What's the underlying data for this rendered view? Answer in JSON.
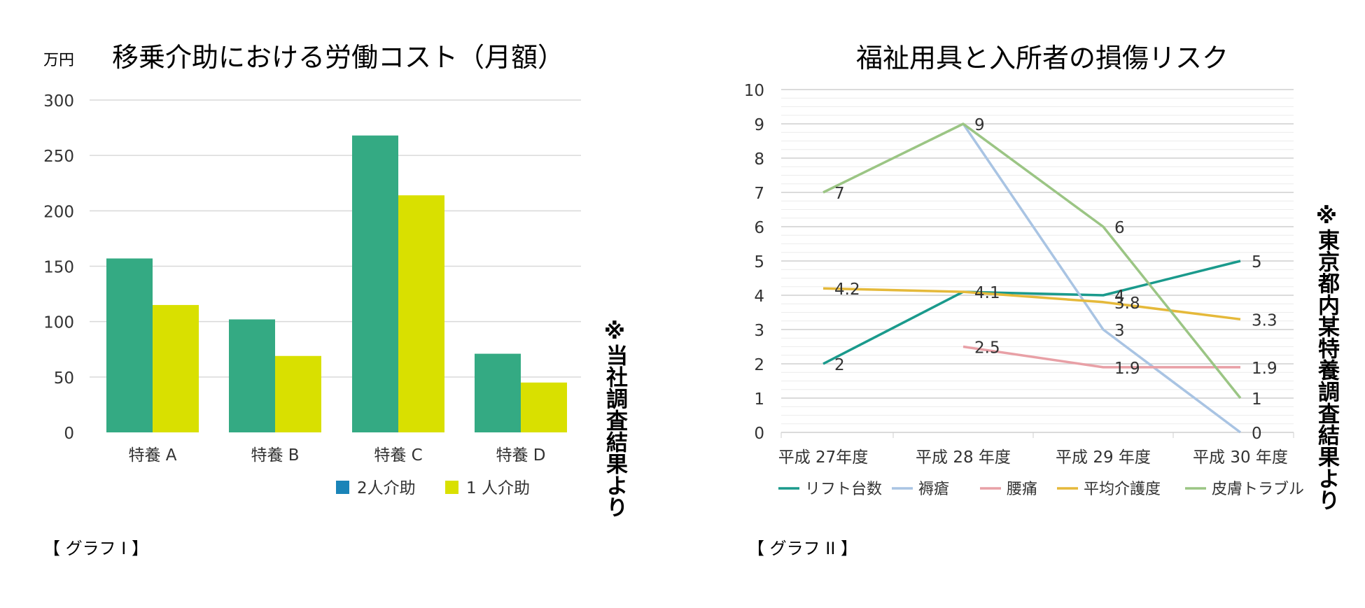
{
  "charts": {
    "c1": {
      "title": "移乗介助における労働コスト（月額）",
      "unit": "万円",
      "note": "※当社調査結果より",
      "caption": "【 グラフ I 】"
    },
    "c2": {
      "title": "福祉用具と入所者の損傷リスク",
      "note": "※東京都内某特養調査結果より",
      "caption": "【 グラフ II 】"
    }
  },
  "chart_data": [
    {
      "type": "bar",
      "title": "移乗介助における労働コスト（月額）",
      "ylabel": "万円",
      "categories": [
        "特養 A",
        "特養 B",
        "特養 C",
        "特養 D"
      ],
      "ylim": [
        0,
        300
      ],
      "yticks": [
        0,
        50,
        100,
        150,
        200,
        250,
        300
      ],
      "grid": true,
      "legend": "bottom",
      "series": [
        {
          "name": "2人介助",
          "color": "#34aa83",
          "legend_color": "#1a84b8",
          "values": [
            157,
            102,
            268,
            71
          ]
        },
        {
          "name": "1 人介助",
          "color": "#d9e000",
          "legend_color": "#d9e000",
          "values": [
            115,
            69,
            214,
            45
          ]
        }
      ]
    },
    {
      "type": "line",
      "title": "福祉用具と入所者の損傷リスク",
      "categories": [
        "平成 27年度",
        "平成 28 年度",
        "平成 29 年度",
        "平成 30 年度"
      ],
      "ylim": [
        0,
        10
      ],
      "yticks": [
        0,
        1,
        2,
        3,
        4,
        5,
        6,
        7,
        8,
        9,
        10
      ],
      "grid": true,
      "legend": "bottom",
      "series": [
        {
          "name": "リフト台数",
          "color": "#1a9a8c",
          "values": [
            2,
            4.1,
            4,
            5
          ],
          "labels": [
            "2",
            "4.1",
            "4",
            "5"
          ]
        },
        {
          "name": "褥瘡",
          "color": "#a9c4e3",
          "values": [
            null,
            9,
            3,
            0
          ],
          "labels": [
            null,
            "",
            "3",
            "0"
          ]
        },
        {
          "name": "腰痛",
          "color": "#e8a0a6",
          "values": [
            null,
            2.5,
            1.9,
            1.9
          ],
          "labels": [
            null,
            "2.5",
            "1.9",
            "1.9"
          ]
        },
        {
          "name": "平均介護度",
          "color": "#e5b93a",
          "values": [
            4.2,
            4.1,
            3.8,
            3.3
          ],
          "labels": [
            "4.2",
            "",
            "3.8",
            "3.3"
          ]
        },
        {
          "name": "皮膚トラブル",
          "color": "#9bc584",
          "values": [
            7,
            9,
            6,
            1
          ],
          "labels": [
            "7",
            "9",
            "6",
            "1"
          ]
        }
      ]
    }
  ]
}
